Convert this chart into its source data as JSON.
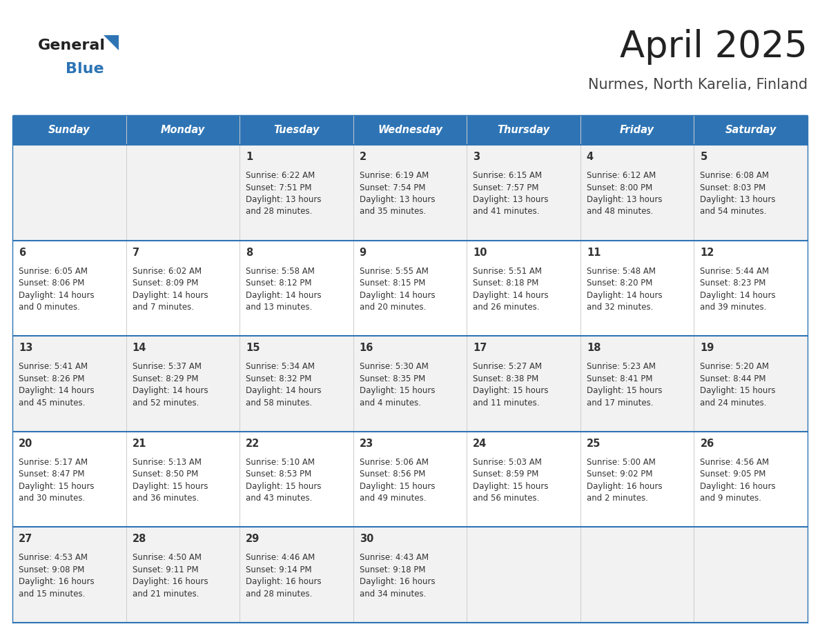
{
  "title": "April 2025",
  "subtitle": "Nurmes, North Karelia, Finland",
  "header_color": "#2e74b5",
  "header_text_color": "#ffffff",
  "cell_bg_even": "#f2f2f2",
  "cell_bg_odd": "#ffffff",
  "border_color": "#2e74b5",
  "grid_color": "#cccccc",
  "days_of_week": [
    "Sunday",
    "Monday",
    "Tuesday",
    "Wednesday",
    "Thursday",
    "Friday",
    "Saturday"
  ],
  "title_color": "#222222",
  "subtitle_color": "#444444",
  "text_color": "#333333",
  "logo_color1": "#222222",
  "logo_color2": "#2e74b5",
  "calendar": [
    [
      {
        "day": "",
        "sunrise": "",
        "sunset": "",
        "daylight": ""
      },
      {
        "day": "",
        "sunrise": "",
        "sunset": "",
        "daylight": ""
      },
      {
        "day": "1",
        "sunrise": "6:22 AM",
        "sunset": "7:51 PM",
        "daylight": "13 hours\nand 28 minutes."
      },
      {
        "day": "2",
        "sunrise": "6:19 AM",
        "sunset": "7:54 PM",
        "daylight": "13 hours\nand 35 minutes."
      },
      {
        "day": "3",
        "sunrise": "6:15 AM",
        "sunset": "7:57 PM",
        "daylight": "13 hours\nand 41 minutes."
      },
      {
        "day": "4",
        "sunrise": "6:12 AM",
        "sunset": "8:00 PM",
        "daylight": "13 hours\nand 48 minutes."
      },
      {
        "day": "5",
        "sunrise": "6:08 AM",
        "sunset": "8:03 PM",
        "daylight": "13 hours\nand 54 minutes."
      }
    ],
    [
      {
        "day": "6",
        "sunrise": "6:05 AM",
        "sunset": "8:06 PM",
        "daylight": "14 hours\nand 0 minutes."
      },
      {
        "day": "7",
        "sunrise": "6:02 AM",
        "sunset": "8:09 PM",
        "daylight": "14 hours\nand 7 minutes."
      },
      {
        "day": "8",
        "sunrise": "5:58 AM",
        "sunset": "8:12 PM",
        "daylight": "14 hours\nand 13 minutes."
      },
      {
        "day": "9",
        "sunrise": "5:55 AM",
        "sunset": "8:15 PM",
        "daylight": "14 hours\nand 20 minutes."
      },
      {
        "day": "10",
        "sunrise": "5:51 AM",
        "sunset": "8:18 PM",
        "daylight": "14 hours\nand 26 minutes."
      },
      {
        "day": "11",
        "sunrise": "5:48 AM",
        "sunset": "8:20 PM",
        "daylight": "14 hours\nand 32 minutes."
      },
      {
        "day": "12",
        "sunrise": "5:44 AM",
        "sunset": "8:23 PM",
        "daylight": "14 hours\nand 39 minutes."
      }
    ],
    [
      {
        "day": "13",
        "sunrise": "5:41 AM",
        "sunset": "8:26 PM",
        "daylight": "14 hours\nand 45 minutes."
      },
      {
        "day": "14",
        "sunrise": "5:37 AM",
        "sunset": "8:29 PM",
        "daylight": "14 hours\nand 52 minutes."
      },
      {
        "day": "15",
        "sunrise": "5:34 AM",
        "sunset": "8:32 PM",
        "daylight": "14 hours\nand 58 minutes."
      },
      {
        "day": "16",
        "sunrise": "5:30 AM",
        "sunset": "8:35 PM",
        "daylight": "15 hours\nand 4 minutes."
      },
      {
        "day": "17",
        "sunrise": "5:27 AM",
        "sunset": "8:38 PM",
        "daylight": "15 hours\nand 11 minutes."
      },
      {
        "day": "18",
        "sunrise": "5:23 AM",
        "sunset": "8:41 PM",
        "daylight": "15 hours\nand 17 minutes."
      },
      {
        "day": "19",
        "sunrise": "5:20 AM",
        "sunset": "8:44 PM",
        "daylight": "15 hours\nand 24 minutes."
      }
    ],
    [
      {
        "day": "20",
        "sunrise": "5:17 AM",
        "sunset": "8:47 PM",
        "daylight": "15 hours\nand 30 minutes."
      },
      {
        "day": "21",
        "sunrise": "5:13 AM",
        "sunset": "8:50 PM",
        "daylight": "15 hours\nand 36 minutes."
      },
      {
        "day": "22",
        "sunrise": "5:10 AM",
        "sunset": "8:53 PM",
        "daylight": "15 hours\nand 43 minutes."
      },
      {
        "day": "23",
        "sunrise": "5:06 AM",
        "sunset": "8:56 PM",
        "daylight": "15 hours\nand 49 minutes."
      },
      {
        "day": "24",
        "sunrise": "5:03 AM",
        "sunset": "8:59 PM",
        "daylight": "15 hours\nand 56 minutes."
      },
      {
        "day": "25",
        "sunrise": "5:00 AM",
        "sunset": "9:02 PM",
        "daylight": "16 hours\nand 2 minutes."
      },
      {
        "day": "26",
        "sunrise": "4:56 AM",
        "sunset": "9:05 PM",
        "daylight": "16 hours\nand 9 minutes."
      }
    ],
    [
      {
        "day": "27",
        "sunrise": "4:53 AM",
        "sunset": "9:08 PM",
        "daylight": "16 hours\nand 15 minutes."
      },
      {
        "day": "28",
        "sunrise": "4:50 AM",
        "sunset": "9:11 PM",
        "daylight": "16 hours\nand 21 minutes."
      },
      {
        "day": "29",
        "sunrise": "4:46 AM",
        "sunset": "9:14 PM",
        "daylight": "16 hours\nand 28 minutes."
      },
      {
        "day": "30",
        "sunrise": "4:43 AM",
        "sunset": "9:18 PM",
        "daylight": "16 hours\nand 34 minutes."
      },
      {
        "day": "",
        "sunrise": "",
        "sunset": "",
        "daylight": ""
      },
      {
        "day": "",
        "sunrise": "",
        "sunset": "",
        "daylight": ""
      },
      {
        "day": "",
        "sunrise": "",
        "sunset": "",
        "daylight": ""
      }
    ]
  ]
}
